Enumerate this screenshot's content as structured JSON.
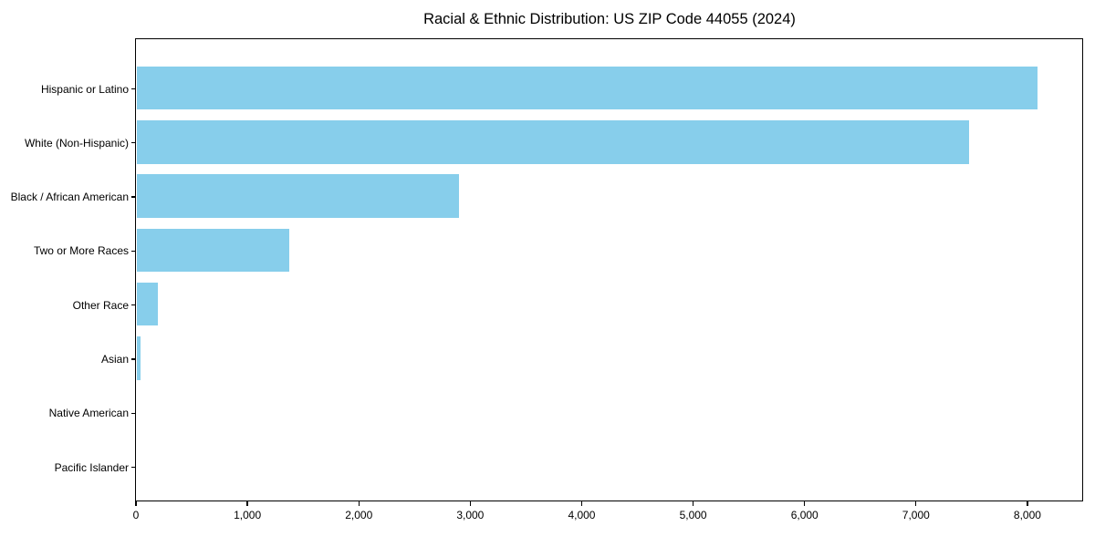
{
  "chart_data": {
    "type": "bar",
    "orientation": "horizontal",
    "title": "Racial & Ethnic Distribution: US ZIP Code 44055 (2024)",
    "categories": [
      "Hispanic or Latino",
      "White (Non-Hispanic)",
      "Black / African American",
      "Two or More Races",
      "Other Race",
      "Asian",
      "Native American",
      "Pacific Islander"
    ],
    "values": [
      8080,
      7470,
      2890,
      1370,
      185,
      30,
      0,
      0
    ],
    "xlabel": "",
    "ylabel": "",
    "xlim": [
      0,
      8500
    ],
    "xticks": [
      0,
      1000,
      2000,
      3000,
      4000,
      5000,
      6000,
      7000,
      8000
    ],
    "xtick_labels": [
      "0",
      "1,000",
      "2,000",
      "3,000",
      "4,000",
      "5,000",
      "6,000",
      "7,000",
      "8,000"
    ],
    "grid": false,
    "legend": null,
    "bar_color": "#87CEEB",
    "background_color": "#FFFFFF",
    "text_color": "#000000"
  }
}
